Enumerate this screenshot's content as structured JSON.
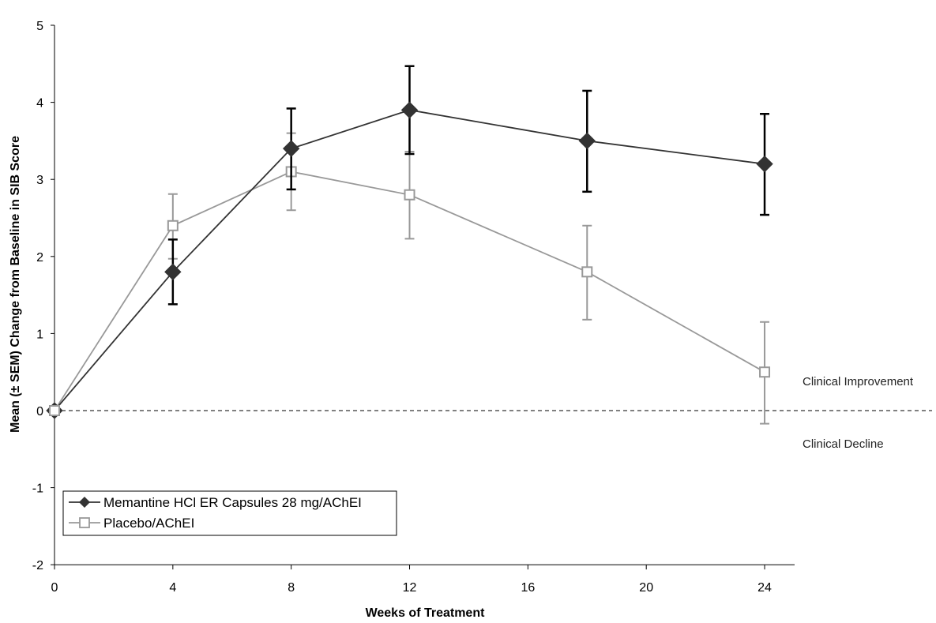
{
  "chart_data": {
    "type": "line",
    "title": "",
    "xlabel": "Weeks of Treatment",
    "ylabel": "Mean (± SEM) Change from Baseline in SIB Score",
    "xlim": [
      0,
      25
    ],
    "ylim": [
      -2,
      5
    ],
    "xticks": [
      0,
      4,
      8,
      12,
      16,
      20,
      24
    ],
    "yticks": [
      -2,
      -1,
      0,
      1,
      2,
      3,
      4,
      5
    ],
    "grid": false,
    "legend_position": "bottom-left",
    "reference_line": {
      "y": 0,
      "style": "dashed"
    },
    "annotations": [
      {
        "text": "Clinical Improvement",
        "position": "right, above reference line"
      },
      {
        "text": "Clinical Decline",
        "position": "right, below reference line"
      }
    ],
    "x": [
      0,
      4,
      8,
      12,
      18,
      24
    ],
    "series": [
      {
        "name": "Memantine HCl ER Capsules 28 mg/AChEI",
        "marker": "diamond",
        "color": "#333333",
        "errcolor": "#000000",
        "values": [
          0,
          1.8,
          3.4,
          3.9,
          3.5,
          3.2
        ],
        "err_low": [
          0,
          1.38,
          2.87,
          3.33,
          2.84,
          2.54
        ],
        "err_high": [
          0,
          2.22,
          3.92,
          4.47,
          4.15,
          3.85
        ]
      },
      {
        "name": "Placebo/AChEI",
        "marker": "square-open",
        "color": "#999999",
        "errcolor": "#999999",
        "values": [
          0,
          2.4,
          3.1,
          2.8,
          1.8,
          0.5
        ],
        "err_low": [
          0,
          1.97,
          2.6,
          2.23,
          1.18,
          -0.17
        ],
        "err_high": [
          0,
          2.81,
          3.6,
          3.36,
          2.4,
          1.15
        ]
      }
    ]
  }
}
